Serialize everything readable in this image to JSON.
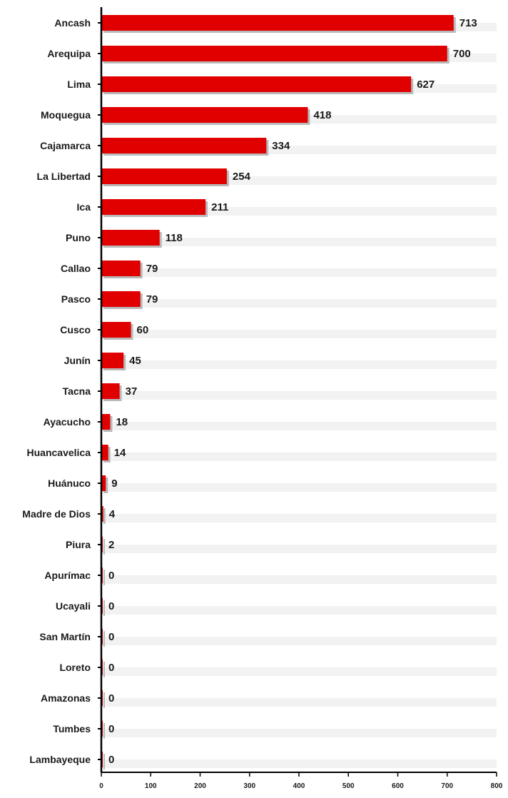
{
  "chart_data": {
    "type": "bar",
    "orientation": "horizontal",
    "categories": [
      "Ancash",
      "Arequipa",
      "Lima",
      "Moquegua",
      "Cajamarca",
      "La Libertad",
      "Ica",
      "Puno",
      "Callao",
      "Pasco",
      "Cusco",
      "Junín",
      "Tacna",
      "Ayacucho",
      "Huancavelica",
      "Huánuco",
      "Madre de Dios",
      "Piura",
      "Apurímac",
      "Ucayali",
      "San Martín",
      "Loreto",
      "Amazonas",
      "Tumbes",
      "Lambayeque"
    ],
    "values": [
      713,
      700,
      627,
      418,
      334,
      254,
      211,
      118,
      79,
      79,
      60,
      45,
      37,
      18,
      14,
      9,
      4,
      2,
      0,
      0,
      0,
      0,
      0,
      0,
      0
    ],
    "value_labels": [
      "713",
      "700",
      "627",
      "418",
      "334",
      "254",
      "211",
      "118",
      "79",
      "79",
      "60",
      "45",
      "37",
      "18",
      "14",
      "9",
      "4",
      "2",
      "0",
      "0",
      "0",
      "0",
      "0",
      "0",
      "0"
    ],
    "xlim": [
      0,
      800
    ],
    "xticks": [
      "0",
      "100",
      "200",
      "300",
      "400",
      "500",
      "600",
      "700",
      "800"
    ],
    "title": "",
    "xlabel": "",
    "ylabel": "",
    "legend": "none",
    "grid": "alternating row bands",
    "colors": {
      "bar": "#e00000",
      "bar_shadow": "#b9b9b9",
      "band": "#f2f2f2",
      "axis": "#000000"
    }
  }
}
